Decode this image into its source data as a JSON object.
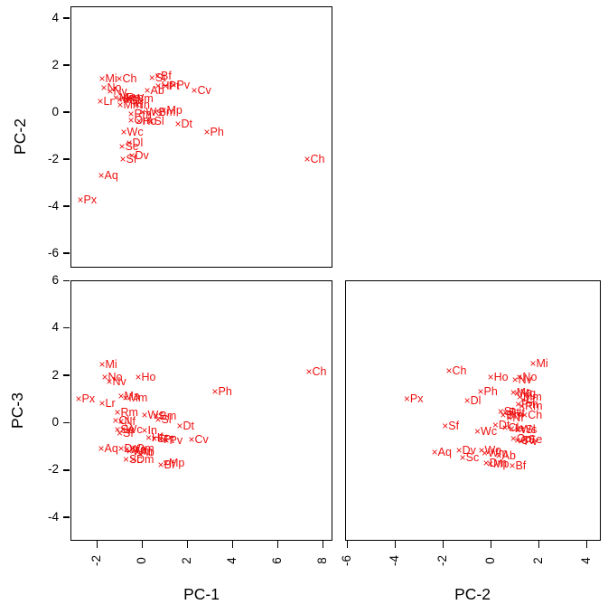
{
  "figure": {
    "marker_glyph": "×",
    "marker_color": "#ee1111",
    "axis_color": "#000000",
    "background": "#ffffff"
  },
  "axis_titles": {
    "top_left_y": "PC-2",
    "bottom_left_y": "PC-3",
    "bottom_left_x": "PC-1",
    "bottom_right_x": "PC-2"
  },
  "chart_data": [
    {
      "id": "pc2-vs-pc1",
      "type": "scatter",
      "xlabel": "PC-1",
      "ylabel": "PC-2",
      "xlim": [
        -3.16,
        8.44
      ],
      "ylim": [
        -6.62,
        4.5
      ],
      "xticks": [],
      "yticks": [
        4,
        2,
        0,
        -2,
        -4,
        -6
      ],
      "grid": false,
      "points": [
        {
          "label": "Mi",
          "x": -1.76,
          "y": 1.46
        },
        {
          "label": "Ch",
          "x": -1.0,
          "y": 1.46
        },
        {
          "label": "St",
          "x": 0.45,
          "y": 1.48
        },
        {
          "label": "Bf",
          "x": 0.7,
          "y": 1.56
        },
        {
          "label": "No",
          "x": -1.68,
          "y": 1.04
        },
        {
          "label": "Nv",
          "x": -1.4,
          "y": 0.92
        },
        {
          "label": "Ab",
          "x": 0.24,
          "y": 0.96
        },
        {
          "label": "Hf",
          "x": 0.72,
          "y": 1.15
        },
        {
          "label": "Pt",
          "x": 1.05,
          "y": 1.12
        },
        {
          "label": "Pv",
          "x": 1.4,
          "y": 1.19
        },
        {
          "label": "Cv",
          "x": 2.32,
          "y": 0.96
        },
        {
          "label": "Lr",
          "x": -1.84,
          "y": 0.46
        },
        {
          "label": "Ma",
          "x": -1.15,
          "y": 0.62
        },
        {
          "label": "Mg",
          "x": -0.98,
          "y": 0.55
        },
        {
          "label": "Pm",
          "x": -0.82,
          "y": 0.62
        },
        {
          "label": "Se",
          "x": -0.66,
          "y": 0.5
        },
        {
          "label": "Wm",
          "x": -0.52,
          "y": 0.58
        },
        {
          "label": "Mm",
          "x": -0.96,
          "y": 0.33
        },
        {
          "label": "In",
          "x": -0.2,
          "y": 0.33
        },
        {
          "label": "Rm",
          "x": -0.48,
          "y": -0.06
        },
        {
          "label": "Ws",
          "x": 0.04,
          "y": 0.02
        },
        {
          "label": "Bm",
          "x": 0.6,
          "y": 0.0
        },
        {
          "label": "Mp",
          "x": 0.96,
          "y": 0.08
        },
        {
          "label": "Om",
          "x": -0.48,
          "y": -0.33
        },
        {
          "label": "Ho",
          "x": -0.12,
          "y": -0.36
        },
        {
          "label": "Sl",
          "x": 0.4,
          "y": -0.36
        },
        {
          "label": "Dt",
          "x": 1.6,
          "y": -0.5
        },
        {
          "label": "Ph",
          "x": 2.88,
          "y": -0.82
        },
        {
          "label": "Wc",
          "x": -0.8,
          "y": -0.82
        },
        {
          "label": "Dl",
          "x": -0.56,
          "y": -1.31
        },
        {
          "label": "Sc",
          "x": -0.88,
          "y": -1.46
        },
        {
          "label": "Dv",
          "x": -0.44,
          "y": -1.82
        },
        {
          "label": "Sf",
          "x": -0.84,
          "y": -1.98
        },
        {
          "label": "Aq",
          "x": -1.8,
          "y": -2.66
        },
        {
          "label": "Px",
          "x": -2.72,
          "y": -3.7
        },
        {
          "label": "Ch",
          "x": 7.32,
          "y": -2.0
        }
      ]
    },
    {
      "id": "pc3-vs-pc1",
      "type": "scatter",
      "xlabel": "PC-1",
      "ylabel": "PC-3",
      "xlim": [
        -3.16,
        8.44
      ],
      "ylim": [
        -5.0,
        6.0
      ],
      "xticks": [
        -2,
        0,
        2,
        4,
        6,
        8
      ],
      "yticks": [
        6,
        4,
        2,
        0,
        -2,
        -4
      ],
      "grid": false,
      "points": [
        {
          "label": "Mi",
          "x": -1.76,
          "y": 2.48
        },
        {
          "label": "No",
          "x": -1.64,
          "y": 1.92
        },
        {
          "label": "Nv",
          "x": -1.44,
          "y": 1.76
        },
        {
          "label": "Ho",
          "x": -0.16,
          "y": 1.92
        },
        {
          "label": "Ch",
          "x": 7.4,
          "y": 2.18
        },
        {
          "label": "Ph",
          "x": 3.24,
          "y": 1.34
        },
        {
          "label": "Px",
          "x": -2.8,
          "y": 1.03
        },
        {
          "label": "Lr",
          "x": -1.76,
          "y": 0.84
        },
        {
          "label": "Ma",
          "x": -0.92,
          "y": 1.14
        },
        {
          "label": "Mm",
          "x": -0.72,
          "y": 1.06
        },
        {
          "label": "Rm",
          "x": -1.08,
          "y": 0.46
        },
        {
          "label": "Ws",
          "x": 0.12,
          "y": 0.34
        },
        {
          "label": "Bm",
          "x": 0.64,
          "y": 0.3
        },
        {
          "label": "Cl",
          "x": -1.16,
          "y": 0.1
        },
        {
          "label": "Nf",
          "x": -0.92,
          "y": 0.06
        },
        {
          "label": "Sl",
          "x": 0.72,
          "y": 0.14
        },
        {
          "label": "Se",
          "x": -1.08,
          "y": -0.3
        },
        {
          "label": "Wc",
          "x": -0.84,
          "y": -0.28
        },
        {
          "label": "Sf",
          "x": -0.98,
          "y": -0.44
        },
        {
          "label": "In",
          "x": 0.12,
          "y": -0.32
        },
        {
          "label": "Dt",
          "x": 1.68,
          "y": -0.12
        },
        {
          "label": "Hf",
          "x": 0.3,
          "y": -0.62
        },
        {
          "label": "St",
          "x": 0.55,
          "y": -0.68
        },
        {
          "label": "Pt",
          "x": 0.82,
          "y": -0.72
        },
        {
          "label": "Pv",
          "x": 1.08,
          "y": -0.76
        },
        {
          "label": "Cv",
          "x": 2.2,
          "y": -0.7
        },
        {
          "label": "Aq",
          "x": -1.8,
          "y": -1.08
        },
        {
          "label": "Dv",
          "x": -0.92,
          "y": -1.1
        },
        {
          "label": "Wo",
          "x": -0.68,
          "y": -1.12
        },
        {
          "label": "Wm",
          "x": -0.55,
          "y": -1.2
        },
        {
          "label": "Om",
          "x": -0.4,
          "y": -1.08
        },
        {
          "label": "Ab",
          "x": -0.2,
          "y": -1.24
        },
        {
          "label": "Sc",
          "x": -0.7,
          "y": -1.54
        },
        {
          "label": "Dm",
          "x": -0.38,
          "y": -1.56
        },
        {
          "label": "Bf",
          "x": 0.84,
          "y": -1.76
        },
        {
          "label": "Mp",
          "x": 1.06,
          "y": -1.7
        }
      ]
    },
    {
      "id": "pc3-vs-pc2",
      "type": "scatter",
      "xlabel": "PC-2",
      "ylabel": "PC-3",
      "xlim": [
        -6.08,
        4.6
      ],
      "ylim": [
        -5.0,
        6.0
      ],
      "xticks": [
        -6,
        -4,
        -2,
        0,
        2,
        4
      ],
      "yticks": [],
      "grid": false,
      "points": [
        {
          "label": "Mi",
          "x": 1.77,
          "y": 2.52
        },
        {
          "label": "Ch",
          "x": -1.74,
          "y": 2.21
        },
        {
          "label": "Ho",
          "x": 0.0,
          "y": 1.92
        },
        {
          "label": "No",
          "x": 1.2,
          "y": 1.92
        },
        {
          "label": "Nv",
          "x": 1.02,
          "y": 1.8
        },
        {
          "label": "Ph",
          "x": -0.42,
          "y": 1.34
        },
        {
          "label": "Px",
          "x": -3.5,
          "y": 1.03
        },
        {
          "label": "Dl",
          "x": -0.98,
          "y": 0.95
        },
        {
          "label": "Ma",
          "x": 0.95,
          "y": 1.3
        },
        {
          "label": "Mg",
          "x": 1.1,
          "y": 1.24
        },
        {
          "label": "Mm",
          "x": 1.22,
          "y": 1.1
        },
        {
          "label": "Lr",
          "x": 1.35,
          "y": 0.98
        },
        {
          "label": "Pm",
          "x": 1.15,
          "y": 0.78
        },
        {
          "label": "Rm",
          "x": 1.3,
          "y": 0.7
        },
        {
          "label": "St",
          "x": 0.42,
          "y": 0.5
        },
        {
          "label": "Pt",
          "x": 0.62,
          "y": 0.44
        },
        {
          "label": "Hf",
          "x": 0.82,
          "y": 0.42
        },
        {
          "label": "Bm",
          "x": 0.52,
          "y": 0.32
        },
        {
          "label": "Nf",
          "x": 0.78,
          "y": 0.2
        },
        {
          "label": "Ch",
          "x": 1.42,
          "y": 0.34
        },
        {
          "label": "Dt",
          "x": 0.2,
          "y": -0.1
        },
        {
          "label": "Cl",
          "x": 0.6,
          "y": -0.2
        },
        {
          "label": "In",
          "x": 0.88,
          "y": -0.24
        },
        {
          "label": "Ws",
          "x": 1.12,
          "y": -0.28
        },
        {
          "label": "Sl",
          "x": 1.32,
          "y": -0.3
        },
        {
          "label": "Se",
          "x": 1.45,
          "y": -0.7
        },
        {
          "label": "Om",
          "x": 0.95,
          "y": -0.66
        },
        {
          "label": "Cv",
          "x": 1.12,
          "y": -0.74
        },
        {
          "label": "Pv",
          "x": 1.28,
          "y": -0.78
        },
        {
          "label": "Sf",
          "x": -1.9,
          "y": -0.12
        },
        {
          "label": "Wc",
          "x": -0.55,
          "y": -0.36
        },
        {
          "label": "Aq",
          "x": -2.34,
          "y": -1.22
        },
        {
          "label": "Dv",
          "x": -1.32,
          "y": -1.15
        },
        {
          "label": "Sc",
          "x": -1.17,
          "y": -1.46
        },
        {
          "label": "Wo",
          "x": -0.38,
          "y": -1.16
        },
        {
          "label": "Wm",
          "x": -0.25,
          "y": -1.28
        },
        {
          "label": "Ab",
          "x": 0.34,
          "y": -1.38
        },
        {
          "label": "Dm",
          "x": -0.19,
          "y": -1.68
        },
        {
          "label": "Mp",
          "x": -0.02,
          "y": -1.72
        },
        {
          "label": "Bf",
          "x": 0.9,
          "y": -1.8
        }
      ]
    }
  ]
}
